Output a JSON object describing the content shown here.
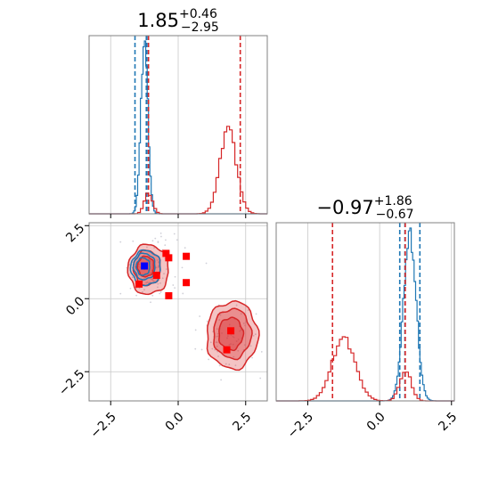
{
  "chart_data": {
    "type": "corner",
    "parameters": [
      "param_0",
      "param_1"
    ],
    "range": {
      "x": [
        -3.3,
        3.3
      ],
      "y": [
        -3.5,
        2.6
      ]
    },
    "hist_range_p0": [
      -3.3,
      3.3
    ],
    "hist_range_p1": [
      -3.6,
      2.6
    ],
    "ticks": {
      "values": [
        -2.5,
        0.0,
        2.5
      ],
      "labels": [
        "−2.5",
        "0.0",
        "2.5"
      ]
    },
    "titles": [
      {
        "value": "1.85",
        "upper": "+0.46",
        "lower": "−2.95"
      },
      {
        "value": "−0.97",
        "upper": "+1.86",
        "lower": "−0.67"
      }
    ],
    "colors": {
      "blue": "#1f77b4",
      "red": "#d62728",
      "frame": "#808080",
      "grid": "#c8c8c8"
    },
    "series": [
      {
        "color": "blue",
        "hist_p0": {
          "bin_width": 0.05,
          "peaks": [
            {
              "center": -1.25,
              "sigma": 0.13,
              "height": 1.0
            }
          ],
          "quantiles": [
            -1.6,
            -1.18,
            -1.12
          ]
        },
        "hist_p1": {
          "bin_width": 0.05,
          "peaks": [
            {
              "center": 1.05,
              "sigma": 0.22,
              "height": 1.0
            }
          ],
          "quantiles": [
            0.7,
            0.88,
            1.4
          ]
        },
        "contours": [
          {
            "cx": -1.2,
            "cy": 1.05,
            "rx": 0.55,
            "ry": 0.6,
            "fill": 0.0
          },
          {
            "cx": -1.25,
            "cy": 1.1,
            "rx": 0.4,
            "ry": 0.45,
            "fill": 0.0
          },
          {
            "cx": -1.3,
            "cy": 1.1,
            "rx": 0.25,
            "ry": 0.3,
            "fill": 0.0
          }
        ],
        "markers": [
          [
            -1.25,
            1.12
          ]
        ]
      },
      {
        "color": "red",
        "hist_p0": {
          "bin_width": 0.1,
          "peaks": [
            {
              "center": -1.1,
              "sigma": 0.15,
              "height": 0.12
            },
            {
              "center": 1.85,
              "sigma": 0.3,
              "height": 0.5
            }
          ],
          "quantiles": [
            -1.1,
            2.3
          ]
        },
        "hist_p1": {
          "bin_width": 0.1,
          "peaks": [
            {
              "center": -1.25,
              "sigma": 0.4,
              "height": 0.38
            },
            {
              "center": 0.9,
              "sigma": 0.2,
              "height": 0.18
            }
          ],
          "quantiles": [
            -1.64,
            0.89
          ]
        },
        "contours": [
          {
            "cx": 2.0,
            "cy": -1.25,
            "rx": 0.95,
            "ry": 1.15,
            "fill": 0.5
          },
          {
            "cx": 2.0,
            "cy": -1.2,
            "rx": 0.7,
            "ry": 0.85,
            "fill": 0.75
          },
          {
            "cx": 1.95,
            "cy": -1.2,
            "rx": 0.45,
            "ry": 0.55,
            "fill": 0.95
          },
          {
            "cx": -1.1,
            "cy": 1.0,
            "rx": 0.75,
            "ry": 0.85,
            "fill": 0.5
          },
          {
            "cx": -1.15,
            "cy": 1.05,
            "rx": 0.5,
            "ry": 0.6,
            "fill": 0.75
          },
          {
            "cx": -1.2,
            "cy": 1.1,
            "rx": 0.3,
            "ry": 0.35,
            "fill": 0.95
          }
        ],
        "markers": [
          [
            -0.45,
            1.55
          ],
          [
            -0.35,
            1.4
          ],
          [
            0.3,
            1.45
          ],
          [
            0.3,
            0.55
          ],
          [
            -0.35,
            0.1
          ],
          [
            -1.45,
            0.5
          ],
          [
            -0.8,
            0.8
          ],
          [
            1.95,
            -1.1
          ],
          [
            1.8,
            -1.75
          ]
        ]
      }
    ]
  }
}
